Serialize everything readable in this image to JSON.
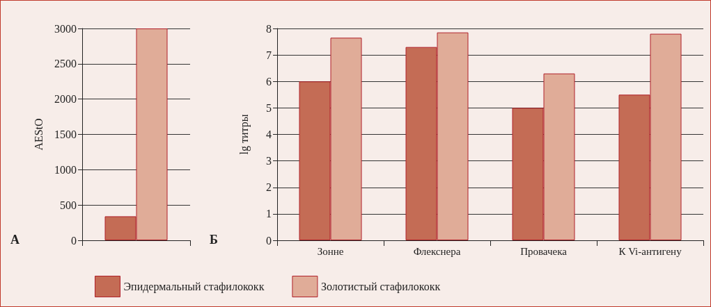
{
  "chart_data": [
    {
      "type": "bar",
      "ylabel": "AEStO",
      "categories": [
        null
      ],
      "series": [
        {
          "color": "#c46c55",
          "values": [
            340
          ]
        },
        {
          "color": "#e0ac98",
          "values": [
            3000
          ]
        }
      ],
      "ylim": [
        0,
        3000
      ],
      "yticks": [
        0,
        500,
        1000,
        1500,
        2000,
        2500,
        3000
      ],
      "grid": "y",
      "legend": false,
      "annotations": [
        "А"
      ]
    },
    {
      "type": "bar",
      "ylabel": "lg титры",
      "categories": [
        "Зонне",
        "Флекснера",
        "Провачека",
        "К Vi-антигену"
      ],
      "series": [
        {
          "name": "Эпидермальный стафилококк",
          "color": "#c46c55",
          "values": [
            6.0,
            7.3,
            5.0,
            5.5
          ]
        },
        {
          "name": "Золотистый стафилококк",
          "color": "#e0ac98",
          "values": [
            7.65,
            7.85,
            6.3,
            7.8
          ]
        }
      ],
      "ylim": [
        0,
        8
      ],
      "yticks": [
        0,
        1,
        2,
        3,
        4,
        5,
        6,
        7,
        8
      ],
      "grid": "y",
      "legend": "bottom",
      "annotations": [
        "Б"
      ]
    }
  ]
}
